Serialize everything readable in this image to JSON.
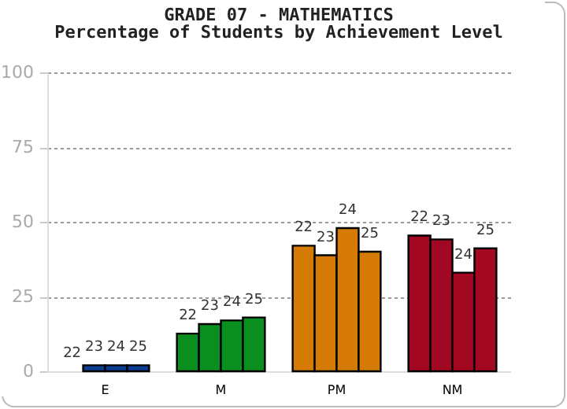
{
  "chart_data": {
    "type": "bar",
    "title": "GRADE 07 - MATHEMATICS",
    "subtitle": "Percentage of Students by Achievement Level",
    "categories": [
      "E",
      "M",
      "PM",
      "NM"
    ],
    "series": [
      {
        "name": "22",
        "colors": [
          "#0b3d91",
          "#0a8f1f",
          "#d67a06",
          "#a30822"
        ],
        "values": [
          0,
          12.6,
          42,
          45.4
        ]
      },
      {
        "name": "23",
        "colors": [
          "#0b3d91",
          "#0a8f1f",
          "#d67a06",
          "#a30822"
        ],
        "values": [
          2,
          15.8,
          38.8,
          44.1
        ]
      },
      {
        "name": "24",
        "colors": [
          "#0b3d91",
          "#0a8f1f",
          "#d67a06",
          "#a30822"
        ],
        "values": [
          2,
          17,
          47.9,
          33
        ]
      },
      {
        "name": "25",
        "colors": [
          "#0b3d91",
          "#0a8f1f",
          "#d67a06",
          "#a30822"
        ],
        "values": [
          2,
          18,
          40,
          41.1
        ]
      }
    ],
    "ylim": [
      0,
      100
    ],
    "yticks": [
      0,
      25,
      50,
      75,
      100
    ],
    "grid": "y"
  }
}
